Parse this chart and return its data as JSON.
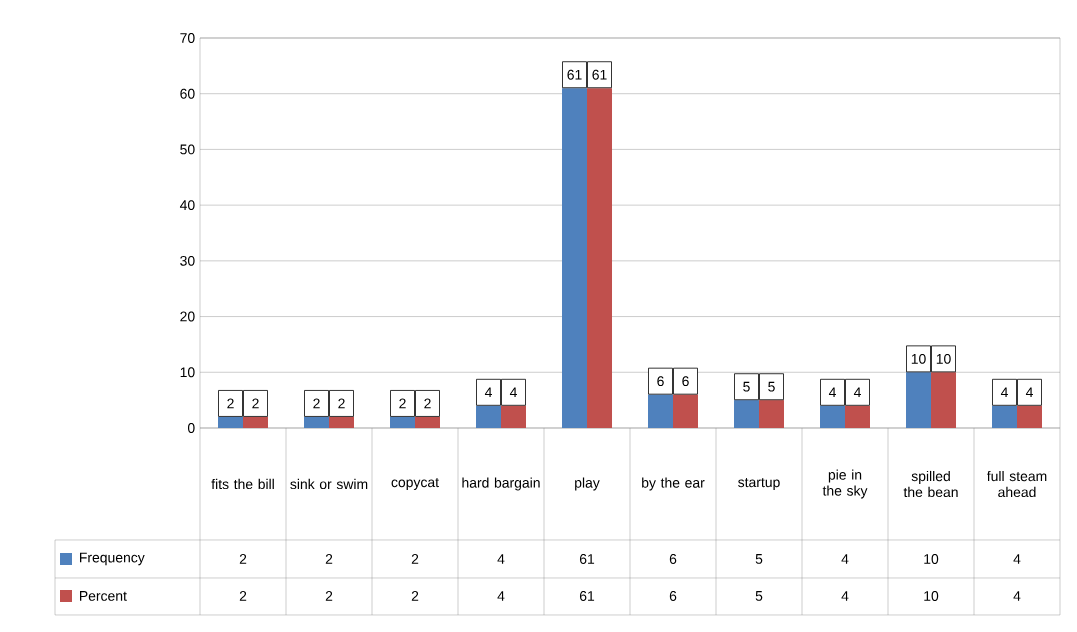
{
  "chart_data": {
    "type": "bar",
    "categories": [
      "fits the bill",
      "sink or swim",
      "copycat",
      "hard bargain",
      "play",
      "by the ear",
      "startup",
      "pie in the sky",
      "spilled the bean",
      "full steam ahead"
    ],
    "series": [
      {
        "name": "Frequency",
        "color": "#4f81bd",
        "values": [
          2,
          2,
          2,
          4,
          61,
          6,
          5,
          4,
          10,
          4
        ]
      },
      {
        "name": "Percent",
        "color": "#c0504d",
        "values": [
          2,
          2,
          2,
          4,
          61,
          6,
          5,
          4,
          10,
          4
        ]
      }
    ],
    "ylim": [
      0,
      70
    ],
    "yticks": [
      0,
      10,
      20,
      30,
      40,
      50,
      60,
      70
    ],
    "grid": "y",
    "legend": "bottom",
    "data_labels": true,
    "annotations": [
      {
        "text": "2",
        "x": "fits the bill",
        "y": 2
      },
      {
        "text": "2",
        "x": "sink or swim",
        "y": 2
      },
      {
        "text": "2",
        "x": "copycat",
        "y": 2
      },
      {
        "text": "4",
        "x": "hard bargain",
        "y": 4
      },
      {
        "text": "61",
        "x": "play",
        "y": 61
      },
      {
        "text": "6",
        "x": "by the ear",
        "y": 6
      },
      {
        "text": "5",
        "x": "startup",
        "y": 5
      },
      {
        "text": "4",
        "x": "pie in the sky",
        "y": 4
      },
      {
        "text": "10",
        "x": "spilled the bean",
        "y": 10
      },
      {
        "text": "4",
        "x": "full steam ahead",
        "y": 4
      },
      {
        "text": "2",
        "x": "fits the bill",
        "y": 2
      },
      {
        "text": "2",
        "x": "sink or swim",
        "y": 2
      },
      {
        "text": "2",
        "x": "copycat",
        "y": 2
      },
      {
        "text": "4",
        "x": "hard bargain",
        "y": 4
      },
      {
        "text": "61",
        "x": "play",
        "y": 61
      },
      {
        "text": "6",
        "x": "by the ear",
        "y": 6
      },
      {
        "text": "5",
        "x": "startup",
        "y": 5
      },
      {
        "text": "4",
        "x": "pie in the sky",
        "y": 4
      },
      {
        "text": "10",
        "x": "spilled the bean",
        "y": 10
      },
      {
        "text": "4",
        "x": "full steam ahead",
        "y": 4
      }
    ]
  }
}
